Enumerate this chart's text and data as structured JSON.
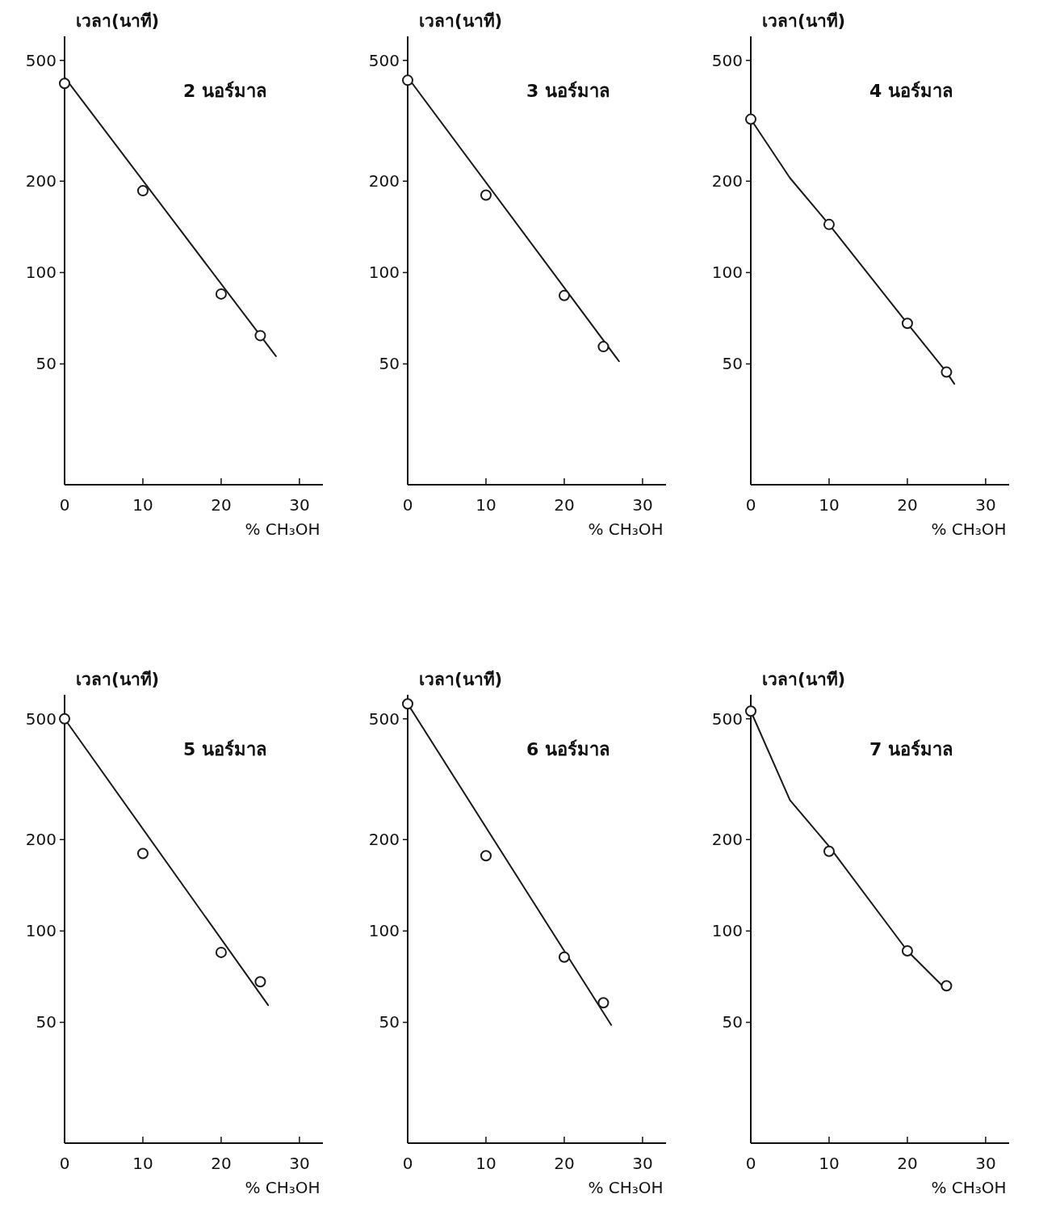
{
  "chart_data": [
    {
      "type": "line",
      "title": "2 นอร์มาล",
      "xlabel": "% CH₃OH",
      "ylabel": "เวลา(นาที)",
      "log": "y",
      "xlim": [
        0,
        33
      ],
      "xticks": [
        0,
        10,
        20,
        30
      ],
      "ylim": [
        20,
        600
      ],
      "yticks": [
        50,
        100,
        200,
        500
      ],
      "series": [
        {
          "type": "scatter",
          "marker": "circle",
          "color": "#1a1a1a",
          "x": [
            0,
            10,
            20,
            25
          ],
          "values": [
            420,
            186,
            85,
            62
          ]
        },
        {
          "type": "line",
          "marker": "none",
          "color": "#1a1a1a",
          "x": [
            0,
            27
          ],
          "values": [
            440,
            53
          ]
        }
      ]
    },
    {
      "type": "line",
      "title": "3 นอร์มาล",
      "xlabel": "% CH₃OH",
      "ylabel": "เวลา(นาที)",
      "log": "y",
      "xlim": [
        0,
        33
      ],
      "xticks": [
        0,
        10,
        20,
        30
      ],
      "ylim": [
        20,
        600
      ],
      "yticks": [
        50,
        100,
        200,
        500
      ],
      "series": [
        {
          "type": "scatter",
          "marker": "circle",
          "color": "#1a1a1a",
          "x": [
            0,
            10,
            20,
            25
          ],
          "values": [
            430,
            180,
            84,
            57
          ]
        },
        {
          "type": "line",
          "marker": "none",
          "color": "#1a1a1a",
          "x": [
            0,
            27
          ],
          "values": [
            440,
            51
          ]
        }
      ]
    },
    {
      "type": "line",
      "title": "4 นอร์มาล",
      "xlabel": "% CH₃OH",
      "ylabel": "เวลา(นาที)",
      "log": "y",
      "xlim": [
        0,
        33
      ],
      "xticks": [
        0,
        10,
        20,
        30
      ],
      "ylim": [
        20,
        600
      ],
      "yticks": [
        50,
        100,
        200,
        500
      ],
      "series": [
        {
          "type": "scatter",
          "marker": "circle",
          "color": "#1a1a1a",
          "x": [
            0,
            10,
            20,
            25
          ],
          "values": [
            320,
            144,
            68,
            47
          ]
        },
        {
          "type": "line",
          "marker": "none",
          "color": "#1a1a1a",
          "x": [
            0,
            5,
            10,
            20,
            25,
            26
          ],
          "values": [
            320,
            205,
            144,
            68,
            47,
            43
          ]
        }
      ]
    },
    {
      "type": "line",
      "title": "5 นอร์มาล",
      "xlabel": "% CH₃OH",
      "ylabel": "เวลา(นาที)",
      "log": "y",
      "xlim": [
        0,
        33
      ],
      "xticks": [
        0,
        10,
        20,
        30
      ],
      "ylim": [
        20,
        600
      ],
      "yticks": [
        50,
        100,
        200,
        500
      ],
      "series": [
        {
          "type": "scatter",
          "marker": "circle",
          "color": "#1a1a1a",
          "x": [
            0,
            10,
            20,
            25
          ],
          "values": [
            500,
            180,
            85,
            68
          ]
        },
        {
          "type": "line",
          "marker": "none",
          "color": "#1a1a1a",
          "x": [
            0,
            26
          ],
          "values": [
            500,
            57
          ]
        }
      ]
    },
    {
      "type": "line",
      "title": "6 นอร์มาล",
      "xlabel": "% CH₃OH",
      "ylabel": "เวลา(นาที)",
      "log": "y",
      "xlim": [
        0,
        33
      ],
      "xticks": [
        0,
        10,
        20,
        30
      ],
      "ylim": [
        20,
        600
      ],
      "yticks": [
        50,
        100,
        200,
        500
      ],
      "series": [
        {
          "type": "scatter",
          "marker": "circle",
          "color": "#1a1a1a",
          "x": [
            0,
            10,
            20,
            25
          ],
          "values": [
            560,
            177,
            82,
            58
          ]
        },
        {
          "type": "line",
          "marker": "none",
          "color": "#1a1a1a",
          "x": [
            0,
            26
          ],
          "values": [
            560,
            49
          ]
        }
      ]
    },
    {
      "type": "line",
      "title": "7 นอร์มาล",
      "xlabel": "% CH₃OH",
      "ylabel": "เวลา(นาที)",
      "log": "y",
      "xlim": [
        0,
        33
      ],
      "xticks": [
        0,
        10,
        20,
        30
      ],
      "ylim": [
        20,
        600
      ],
      "yticks": [
        50,
        100,
        200,
        500
      ],
      "series": [
        {
          "type": "scatter",
          "marker": "circle",
          "color": "#1a1a1a",
          "x": [
            0,
            10,
            20,
            25
          ],
          "values": [
            530,
            183,
            86,
            66
          ]
        },
        {
          "type": "line",
          "marker": "none",
          "color": "#1a1a1a",
          "x": [
            0,
            5,
            10,
            20,
            25
          ],
          "values": [
            530,
            270,
            190,
            86,
            64
          ]
        }
      ]
    }
  ]
}
